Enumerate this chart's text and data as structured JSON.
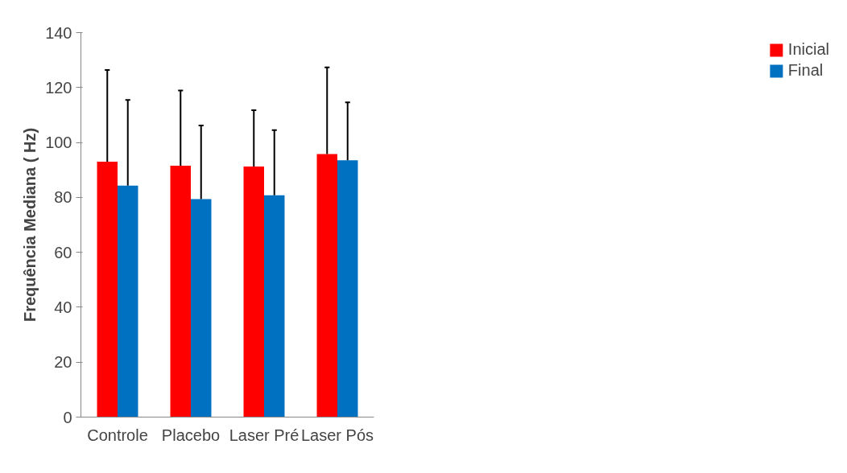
{
  "chart_data": {
    "type": "bar",
    "ylabel": "Frequência Mediana ( Hz)",
    "categories": [
      "Controle",
      "Placebo",
      "Laser Pré",
      "Laser Pós"
    ],
    "series": [
      {
        "name": "Inicial",
        "color": "#ff0000",
        "values": [
          93.0,
          91.5,
          91.2,
          95.8
        ],
        "errors": [
          [
            93.0,
            126.4
          ],
          [
            91.5,
            118.9
          ],
          [
            91.2,
            111.7
          ],
          [
            95.8,
            127.3
          ]
        ]
      },
      {
        "name": "Final",
        "color": "#0070c0",
        "values": [
          84.3,
          79.4,
          80.8,
          93.5
        ],
        "errors": [
          [
            84.3,
            115.5
          ],
          [
            79.4,
            106.2
          ],
          [
            80.8,
            104.5
          ],
          [
            93.5,
            114.6
          ]
        ]
      }
    ],
    "ylim": [
      0,
      140
    ],
    "yticks": [
      0,
      20,
      40,
      60,
      80,
      100,
      120,
      140
    ],
    "grid": false,
    "legend": "right"
  }
}
